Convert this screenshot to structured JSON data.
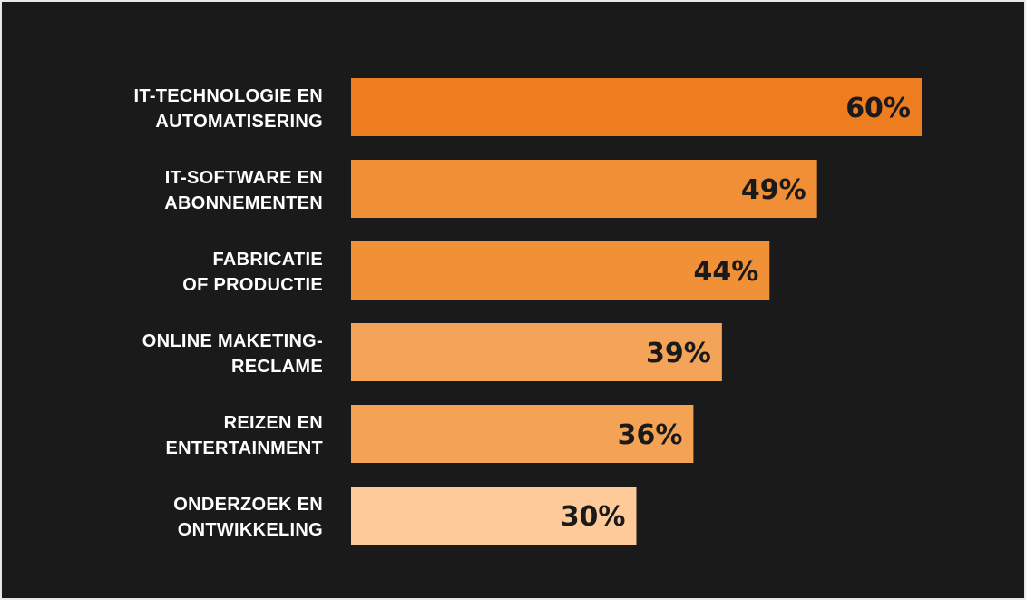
{
  "colors": {
    "background": "#1a1a1a",
    "label_text": "#ffffff",
    "value_text": "#1a1a1a"
  },
  "chart_data": {
    "type": "bar",
    "orientation": "horizontal",
    "categories": [
      [
        "IT-TECHNOLOGIE EN",
        "AUTOMATISERING"
      ],
      [
        "IT-SOFTWARE EN",
        "ABONNEMENTEN"
      ],
      [
        "FABRICATIE",
        "OF PRODUCTIE"
      ],
      [
        "ONLINE MAKETING-",
        "RECLAME"
      ],
      [
        "REIZEN EN",
        "ENTERTAINMENT"
      ],
      [
        "ONDERZOEK EN",
        "ONTWIKKELING"
      ]
    ],
    "values": [
      60,
      49,
      44,
      39,
      36,
      30
    ],
    "value_labels": [
      "60%",
      "49%",
      "44%",
      "39%",
      "36%",
      "30%"
    ],
    "bar_colors": [
      "#ee7d20",
      "#f08f35",
      "#f09138",
      "#f3a458",
      "#f4a355",
      "#ffca9a"
    ],
    "unit": "%",
    "xlim": [
      0,
      60
    ],
    "grid": false,
    "legend": false
  }
}
